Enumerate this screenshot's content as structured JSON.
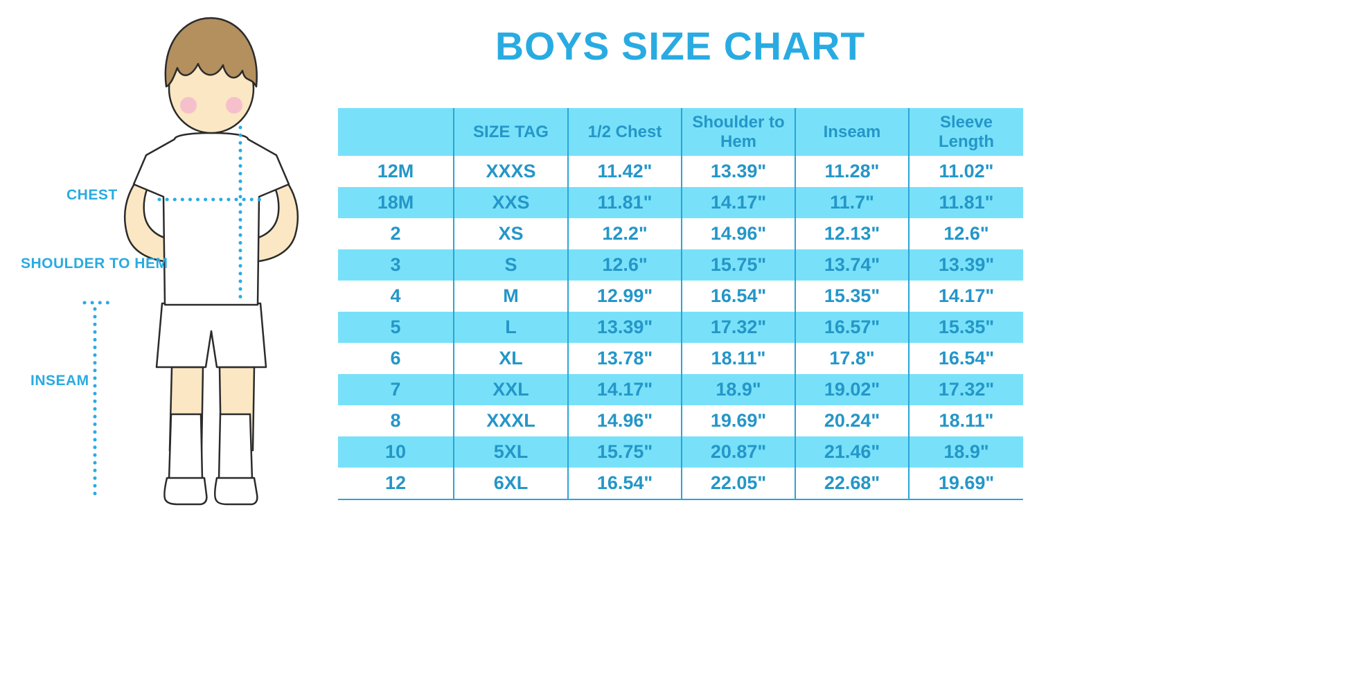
{
  "title": "BOYS SIZE CHART",
  "colors": {
    "accent_blue": "#29abe2",
    "row_highlight": "#78e1f9",
    "table_text": "#2496c8",
    "grid_line": "#2aa4d6",
    "skin": "#fbe7c3",
    "hair": "#b3905e",
    "blush": "#f5c0cc"
  },
  "diagram": {
    "labels": {
      "chest": "CHEST",
      "shoulder_to_hem": "SHOULDER TO HEM",
      "inseam": "INSEAM"
    }
  },
  "chart_data": {
    "type": "table",
    "title": "BOYS SIZE CHART",
    "columns": [
      "",
      "SIZE TAG",
      "1/2 Chest",
      "Shoulder to Hem",
      "Inseam",
      "Sleeve Length"
    ],
    "rows": [
      [
        "12M",
        "XXXS",
        "11.42\"",
        "13.39\"",
        "11.28\"",
        "11.02\""
      ],
      [
        "18M",
        "XXS",
        "11.81\"",
        "14.17\"",
        "11.7\"",
        "11.81\""
      ],
      [
        "2",
        "XS",
        "12.2\"",
        "14.96\"",
        "12.13\"",
        "12.6\""
      ],
      [
        "3",
        "S",
        "12.6\"",
        "15.75\"",
        "13.74\"",
        "13.39\""
      ],
      [
        "4",
        "M",
        "12.99\"",
        "16.54\"",
        "15.35\"",
        "14.17\""
      ],
      [
        "5",
        "L",
        "13.39\"",
        "17.32\"",
        "16.57\"",
        "15.35\""
      ],
      [
        "6",
        "XL",
        "13.78\"",
        "18.11\"",
        "17.8\"",
        "16.54\""
      ],
      [
        "7",
        "XXL",
        "14.17\"",
        "18.9\"",
        "19.02\"",
        "17.32\""
      ],
      [
        "8",
        "XXXL",
        "14.96\"",
        "19.69\"",
        "20.24\"",
        "18.11\""
      ],
      [
        "10",
        "5XL",
        "15.75\"",
        "20.87\"",
        "21.46\"",
        "18.9\""
      ],
      [
        "12",
        "6XL",
        "16.54\"",
        "22.05\"",
        "22.68\"",
        "19.69\""
      ]
    ]
  }
}
